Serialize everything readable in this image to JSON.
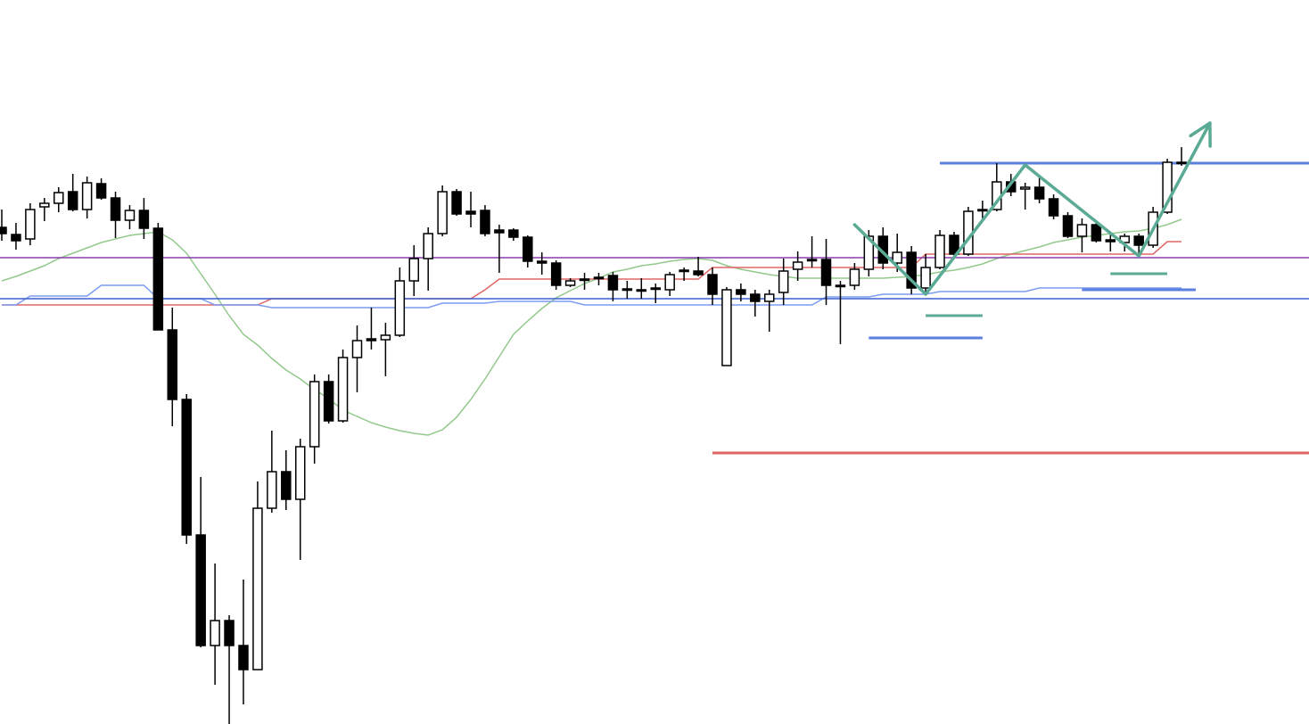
{
  "chart_data": {
    "type": "candlestick",
    "ylim": [
      0,
      812
    ],
    "categories": [
      null,
      null,
      null,
      null,
      null,
      null,
      null,
      null,
      null,
      null,
      null,
      null,
      null,
      null,
      null,
      null,
      null,
      null,
      null,
      null,
      null,
      null,
      null,
      null,
      null,
      null,
      null,
      null,
      null,
      null,
      null,
      null,
      null,
      null,
      null,
      null,
      null,
      null,
      null,
      null,
      null,
      null,
      null,
      null,
      null,
      null,
      null,
      null,
      null,
      null,
      null,
      null,
      null,
      null,
      null,
      null,
      null,
      null,
      null,
      null,
      null,
      null,
      null,
      null,
      null,
      null,
      null,
      null,
      null,
      null,
      null,
      null,
      null,
      null,
      null,
      null,
      null,
      null,
      null,
      null,
      null,
      null,
      null,
      null
    ],
    "open": [
      557,
      549,
      544,
      580,
      584,
      597,
      577,
      606,
      590,
      565,
      576,
      556,
      442,
      364,
      212,
      88,
      116,
      88,
      61,
      242,
      283,
      252,
      311,
      384,
      340,
      411,
      432,
      431,
      436,
      497,
      522,
      550,
      597,
      575,
      576,
      554,
      554,
      546,
      519,
      517,
      492,
      498,
      500,
      503,
      488,
      487,
      488,
      487,
      508,
      508,
      504,
      402,
      487,
      482,
      474,
      484,
      510,
      520,
      521,
      492,
      492,
      510,
      547,
      517,
      529,
      489,
      512,
      548,
      527,
      577,
      577,
      608,
      600,
      602,
      589,
      570,
      547,
      560,
      543,
      540,
      547,
      537,
      574,
      629
    ],
    "high": [
      577,
      562,
      584,
      590,
      602,
      617,
      614,
      612,
      597,
      582,
      590,
      562,
      467,
      370,
      277,
      180,
      122,
      162,
      272,
      329,
      307,
      320,
      392,
      392,
      420,
      447,
      467,
      450,
      512,
      537,
      557,
      604,
      600,
      597,
      582,
      560,
      556,
      548,
      529,
      520,
      500,
      506,
      506,
      507,
      497,
      500,
      494,
      507,
      512,
      524,
      512,
      490,
      494,
      487,
      487,
      522,
      530,
      547,
      544,
      497,
      517,
      554,
      557,
      550,
      536,
      527,
      554,
      552,
      580,
      587,
      629,
      617,
      607,
      614,
      594,
      574,
      567,
      564,
      550,
      550,
      550,
      580,
      634,
      647
    ],
    "low": [
      542,
      532,
      537,
      564,
      574,
      575,
      567,
      588,
      545,
      555,
      544,
      442,
      334,
      202,
      86,
      44,
      0,
      22,
      61,
      237,
      240,
      184,
      292,
      337,
      338,
      372,
      420,
      390,
      434,
      480,
      486,
      547,
      570,
      557,
      547,
      506,
      542,
      512,
      504,
      487,
      490,
      487,
      492,
      474,
      477,
      477,
      472,
      480,
      497,
      502,
      470,
      402,
      474,
      457,
      440,
      470,
      497,
      512,
      470,
      426,
      487,
      502,
      510,
      507,
      482,
      482,
      510,
      522,
      525,
      567,
      575,
      592,
      577,
      584,
      566,
      545,
      529,
      540,
      530,
      530,
      527,
      534,
      572,
      626
    ],
    "close": [
      550,
      542,
      577,
      584,
      596,
      577,
      607,
      590,
      565,
      576,
      556,
      442,
      364,
      212,
      88,
      116,
      88,
      61,
      242,
      283,
      252,
      311,
      384,
      340,
      411,
      430,
      430,
      436,
      497,
      522,
      550,
      597,
      572,
      572,
      550,
      551,
      546,
      519,
      517,
      492,
      497,
      499,
      501,
      487,
      487,
      487,
      489,
      504,
      509,
      504,
      482,
      487,
      482,
      474,
      482,
      508,
      518,
      521,
      492,
      492,
      510,
      547,
      517,
      529,
      489,
      512,
      548,
      527,
      575,
      576,
      608,
      597,
      602,
      589,
      570,
      547,
      560,
      542,
      541,
      547,
      537,
      574,
      630,
      630
    ],
    "up_color": "#ffffff",
    "down_color": "#000000",
    "series": [
      {
        "color": "#93c98c",
        "values": [
          497,
          502,
          508,
          514,
          522,
          528,
          534,
          540,
          544,
          548,
          550,
          552,
          543,
          528,
          505,
          482,
          458,
          437,
          425,
          410,
          397,
          387,
          375,
          365,
          352,
          345,
          338,
          333,
          329,
          326,
          324,
          330,
          344,
          364,
          387,
          412,
          437,
          452,
          466,
          478,
          486,
          494,
          500,
          507,
          510,
          514,
          516,
          519,
          521,
          522,
          520,
          514,
          510,
          507,
          504,
          502,
          500,
          500,
          500,
          500,
          500,
          500,
          500,
          501,
          502,
          504,
          507,
          509,
          512,
          516,
          522,
          527,
          531,
          535,
          540,
          543,
          546,
          548,
          550,
          552,
          553,
          556,
          560,
          566
        ]
      },
      {
        "color": "#e06666",
        "values": [
          470,
          470,
          470,
          470,
          470,
          470,
          470,
          470,
          470,
          470,
          470,
          470,
          470,
          470,
          470,
          470,
          470,
          470,
          470,
          477,
          477,
          477,
          477,
          477,
          477,
          477,
          477,
          477,
          477,
          477,
          477,
          477,
          477,
          477,
          487,
          499,
          499,
          499,
          499,
          499,
          499,
          499,
          499,
          499,
          499,
          499,
          499,
          499,
          499,
          499,
          512,
          512,
          512,
          512,
          512,
          512,
          512,
          512,
          512,
          512,
          512,
          512,
          512,
          512,
          512,
          527,
          527,
          527,
          527,
          527,
          527,
          527,
          527,
          527,
          527,
          527,
          527,
          527,
          527,
          527,
          527,
          527,
          541,
          541
        ]
      },
      {
        "color": "#7b9cf0",
        "values": [
          470,
          470,
          480,
          480,
          480,
          480,
          480,
          492,
          492,
          492,
          492,
          477,
          477,
          477,
          477,
          470,
          470,
          470,
          470,
          467,
          467,
          467,
          467,
          467,
          467,
          467,
          467,
          467,
          467,
          467,
          467,
          472,
          472,
          472,
          472,
          474,
          474,
          474,
          474,
          474,
          474,
          470,
          470,
          470,
          470,
          470,
          470,
          470,
          470,
          470,
          470,
          470,
          470,
          470,
          470,
          470,
          470,
          470,
          479,
          479,
          479,
          479,
          482,
          482,
          482,
          482,
          485,
          485,
          485,
          485,
          485,
          485,
          485,
          489,
          489,
          489,
          489,
          489,
          489,
          489,
          489,
          489,
          489,
          489
        ]
      }
    ],
    "levels": [
      {
        "value": 523,
        "color": "#8a3bb0"
      },
      {
        "value": 477,
        "color": "#3a5fd0"
      },
      {
        "value": 304,
        "color": "#e06666",
        "from": 50
      },
      {
        "value": 629,
        "color": "#5b7fdc",
        "from": 66
      },
      {
        "value": 458,
        "color": "#5aaa96",
        "from": 65,
        "to": 69
      },
      {
        "value": 433,
        "color": "#5b7fdc",
        "from": 61,
        "to": 69
      },
      {
        "value": 505,
        "color": "#5aaa96",
        "from": 78,
        "to": 82
      },
      {
        "value": 487,
        "color": "#5b7fdc",
        "from": 76,
        "to": 84
      }
    ],
    "zigzag": {
      "color": "#5aaa96",
      "x": [
        60,
        65,
        72,
        80,
        85
      ],
      "y": [
        560,
        482,
        627,
        525,
        674
      ]
    }
  }
}
